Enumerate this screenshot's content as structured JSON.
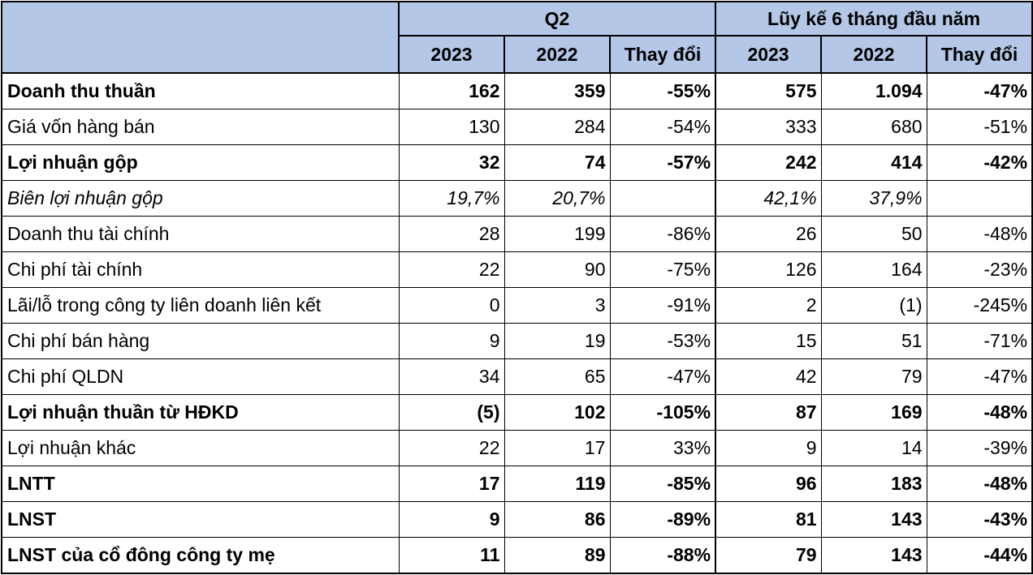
{
  "header": {
    "group_q2": "Q2",
    "group_ytd": "Lũy kế 6 tháng đầu năm",
    "cols": [
      "2023",
      "2022",
      "Thay đổi",
      "2023",
      "2022",
      "Thay đổi"
    ]
  },
  "rows": [
    {
      "label": "Doanh thu thuần",
      "style": "bold",
      "values": [
        "162",
        "359",
        "-55%",
        "575",
        "1.094",
        "-47%"
      ]
    },
    {
      "label": "Giá vốn hàng bán",
      "style": "normal",
      "values": [
        "130",
        "284",
        "-54%",
        "333",
        "680",
        "-51%"
      ]
    },
    {
      "label": "Lợi nhuận gộp",
      "style": "bold",
      "values": [
        "32",
        "74",
        "-57%",
        "242",
        "414",
        "-42%"
      ]
    },
    {
      "label": "Biên lợi nhuận gộp",
      "style": "italic",
      "values": [
        "19,7%",
        "20,7%",
        "",
        "42,1%",
        "37,9%",
        ""
      ]
    },
    {
      "label": "Doanh thu tài chính",
      "style": "normal",
      "values": [
        "28",
        "199",
        "-86%",
        "26",
        "50",
        "-48%"
      ]
    },
    {
      "label": "Chi phí tài chính",
      "style": "normal",
      "values": [
        "22",
        "90",
        "-75%",
        "126",
        "164",
        "-23%"
      ]
    },
    {
      "label": "Lãi/lỗ trong công ty liên doanh liên kết",
      "style": "normal",
      "values": [
        "0",
        "3",
        "-91%",
        "2",
        "(1)",
        "-245%"
      ]
    },
    {
      "label": "Chi phí bán hàng",
      "style": "normal",
      "values": [
        "9",
        "19",
        "-53%",
        "15",
        "51",
        "-71%"
      ]
    },
    {
      "label": "Chi phí QLDN",
      "style": "normal",
      "values": [
        "34",
        "65",
        "-47%",
        "42",
        "79",
        "-47%"
      ]
    },
    {
      "label": "Lợi nhuận thuần từ HĐKD",
      "style": "bold",
      "values": [
        "(5)",
        "102",
        "-105%",
        "87",
        "169",
        "-48%"
      ]
    },
    {
      "label": "Lợi nhuận khác",
      "style": "normal",
      "values": [
        "22",
        "17",
        "33%",
        "9",
        "14",
        "-39%"
      ]
    },
    {
      "label": "LNTT",
      "style": "bold",
      "values": [
        "17",
        "119",
        "-85%",
        "96",
        "183",
        "-48%"
      ]
    },
    {
      "label": "LNST",
      "style": "bold",
      "values": [
        "9",
        "86",
        "-89%",
        "81",
        "143",
        "-43%"
      ]
    },
    {
      "label": "LNST của cổ đông công ty mẹ",
      "style": "bold",
      "values": [
        "11",
        "89",
        "-88%",
        "79",
        "143",
        "-44%"
      ]
    }
  ],
  "colors": {
    "header_bg": "#b4c7e7"
  }
}
